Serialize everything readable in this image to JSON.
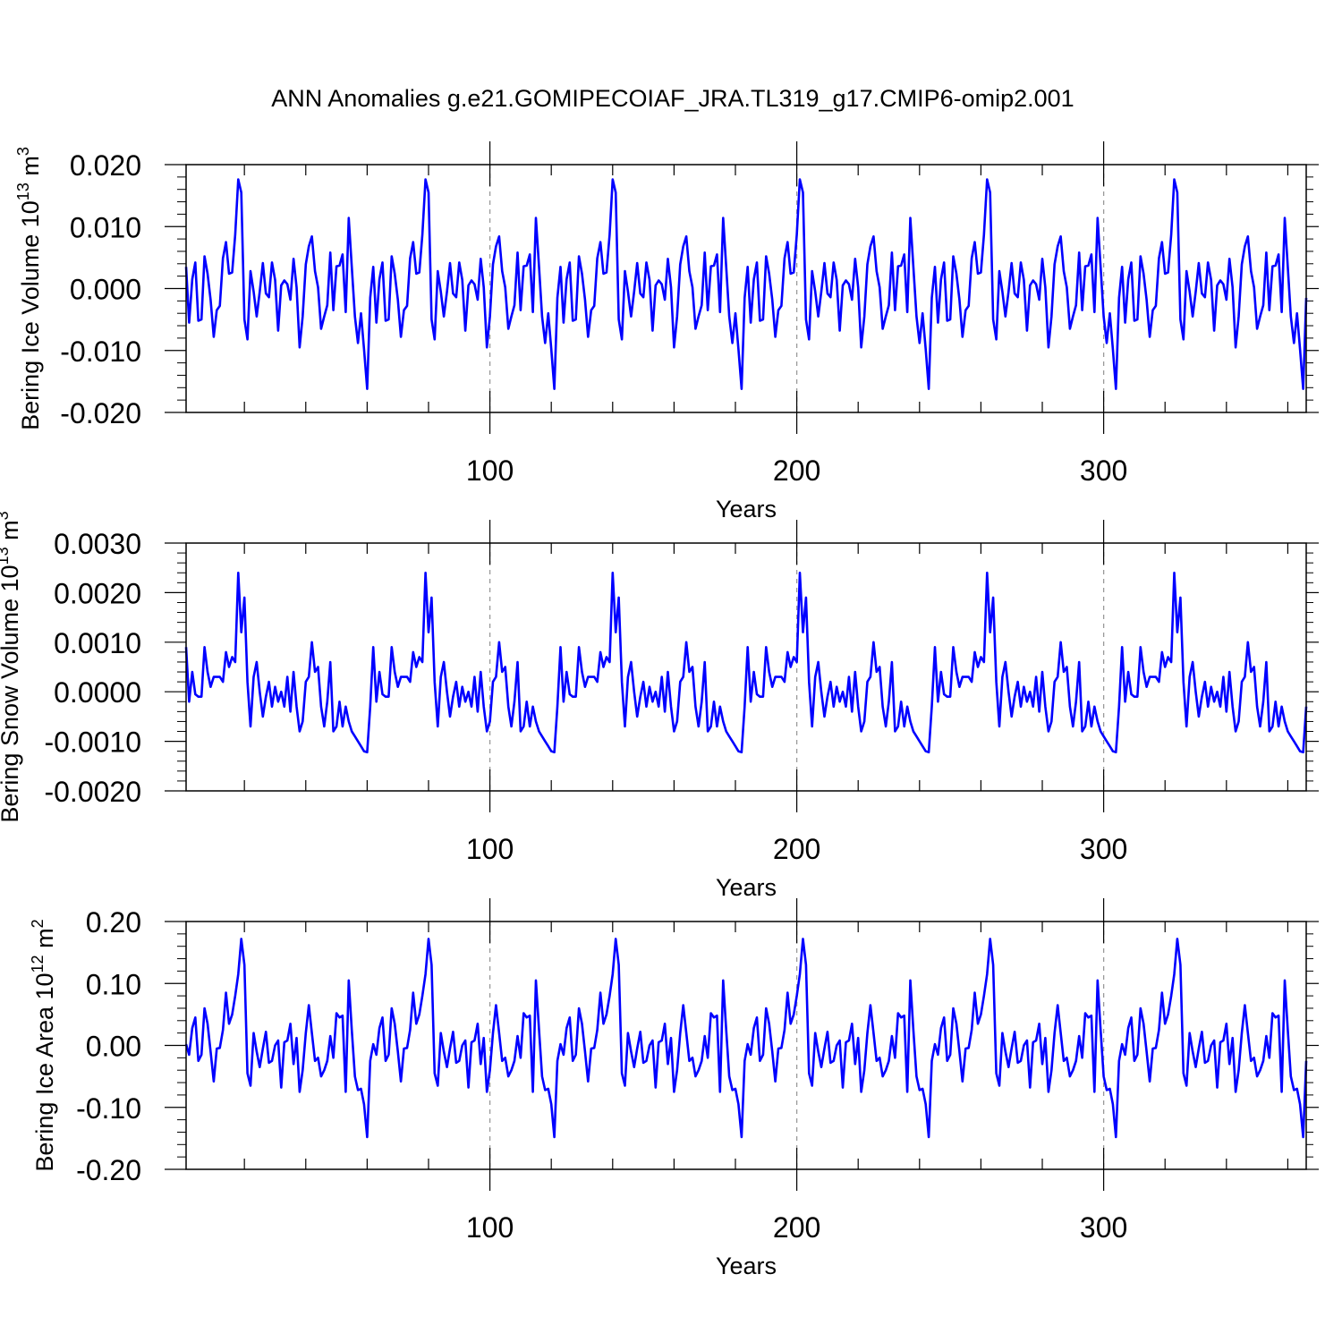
{
  "title": "ANN Anomalies g.e21.GOMIPECOIAF_JRA.TL319_g17.CMIP6-omip2.001",
  "line_color": "#0000ff",
  "chart_data": [
    {
      "type": "line",
      "ylabel_main": "Bering Ice Volume 10",
      "ylabel_exp": "13",
      "ylabel_unit": " m",
      "ylabel_unit_exp": "3",
      "xlabel": "Years",
      "xlim": [
        1,
        366
      ],
      "ylim": [
        -0.02,
        0.02
      ],
      "yticks": [
        -0.02,
        -0.01,
        0.0,
        0.01,
        0.02
      ],
      "ytick_labels": [
        "-0.020",
        "-0.010",
        "0.000",
        "0.010",
        "0.020"
      ],
      "xticks": [
        100,
        200,
        300
      ],
      "xtick_labels": [
        "100",
        "200",
        "300"
      ],
      "cycle_length": 61,
      "cycle_values": [
        0.0035,
        -0.0055,
        0.0015,
        0.0042,
        -0.0052,
        -0.005,
        0.0052,
        0.0024,
        -0.0018,
        -0.0078,
        -0.0035,
        -0.0028,
        0.0049,
        0.0075,
        0.0024,
        0.0026,
        0.0087,
        0.0176,
        0.0155,
        -0.005,
        -0.0082,
        0.0028,
        -0.0005,
        -0.0045,
        -0.0005,
        0.0041,
        -0.0008,
        -0.0014,
        0.0042,
        0.0014,
        -0.0068,
        0.0005,
        0.0013,
        0.0007,
        -0.0018,
        0.0048,
        0.0002,
        -0.0095,
        -0.0045,
        0.0039,
        0.0068,
        0.0084,
        0.0028,
        0.0002,
        -0.0065,
        -0.0045,
        -0.0027,
        0.0058,
        -0.0035,
        0.0036,
        0.0037,
        0.0055,
        -0.0038,
        0.0114,
        0.0035,
        -0.0045,
        -0.0088,
        -0.004,
        -0.0098,
        -0.0162,
        -0.0015
      ]
    },
    {
      "type": "line",
      "ylabel_main": "Bering Snow Volume 10",
      "ylabel_exp": "13",
      "ylabel_unit": " m",
      "ylabel_unit_exp": "3",
      "xlabel": "Years",
      "xlim": [
        1,
        366
      ],
      "ylim": [
        -0.002,
        0.003
      ],
      "yticks": [
        -0.002,
        -0.001,
        0.0,
        0.001,
        0.002,
        0.003
      ],
      "ytick_labels": [
        "-0.0020",
        "-0.0010",
        "0.0000",
        "0.0010",
        "0.0020",
        "0.0030"
      ],
      "xticks": [
        100,
        200,
        300
      ],
      "xtick_labels": [
        "100",
        "200",
        "300"
      ],
      "cycle_length": 61,
      "cycle_values": [
        0.0009,
        -0.0002,
        0.0004,
        -5e-05,
        -0.0001,
        -0.0001,
        0.0009,
        0.0004,
        0.0001,
        0.0003,
        0.0003,
        0.0003,
        0.0002,
        0.0008,
        0.0005,
        0.0007,
        0.0006,
        0.0024,
        0.0012,
        0.0019,
        0.0002,
        -0.0007,
        0.0003,
        0.0006,
        0.0,
        -0.0005,
        -0.0001,
        0.0002,
        -0.0003,
        0.0001,
        -0.0002,
        0.0,
        -0.0003,
        0.0003,
        -0.0004,
        0.0004,
        -0.0003,
        -0.0008,
        -0.0006,
        0.0002,
        0.0003,
        0.001,
        0.0004,
        0.0005,
        -0.0003,
        -0.0007,
        -0.0002,
        0.0006,
        -0.0008,
        -0.0007,
        -0.0002,
        -0.0007,
        -0.0003,
        -0.0006,
        -0.0008,
        -0.0009,
        -0.001,
        -0.0011,
        -0.0012,
        -0.00122,
        -0.0003
      ]
    },
    {
      "type": "line",
      "ylabel_main": "Bering Ice Area 10",
      "ylabel_exp": "12",
      "ylabel_unit": " m",
      "ylabel_unit_exp": "2",
      "xlabel": "Years",
      "xlim": [
        1,
        366
      ],
      "ylim": [
        -0.2,
        0.2
      ],
      "yticks": [
        -0.2,
        -0.1,
        0.0,
        0.1,
        0.2
      ],
      "ytick_labels": [
        "-0.20",
        "-0.10",
        "0.00",
        "0.10",
        "0.20"
      ],
      "xticks": [
        100,
        200,
        300
      ],
      "xtick_labels": [
        "100",
        "200",
        "300"
      ],
      "cycle_length": 61,
      "cycle_values": [
        0.002,
        -0.015,
        0.028,
        0.045,
        -0.025,
        -0.015,
        0.06,
        0.035,
        -0.01,
        -0.058,
        -0.005,
        -0.004,
        0.025,
        0.085,
        0.035,
        0.05,
        0.08,
        0.115,
        0.172,
        0.13,
        -0.045,
        -0.065,
        0.02,
        -0.01,
        -0.035,
        -0.005,
        0.022,
        -0.028,
        -0.025,
        0.0,
        0.008,
        -0.068,
        0.005,
        0.008,
        0.035,
        -0.03,
        0.012,
        -0.075,
        -0.04,
        0.02,
        0.065,
        0.02,
        -0.025,
        -0.02,
        -0.05,
        -0.04,
        -0.025,
        0.015,
        -0.02,
        0.052,
        0.045,
        0.048,
        -0.075,
        0.105,
        0.025,
        -0.05,
        -0.072,
        -0.07,
        -0.095,
        -0.148,
        -0.025
      ]
    }
  ]
}
